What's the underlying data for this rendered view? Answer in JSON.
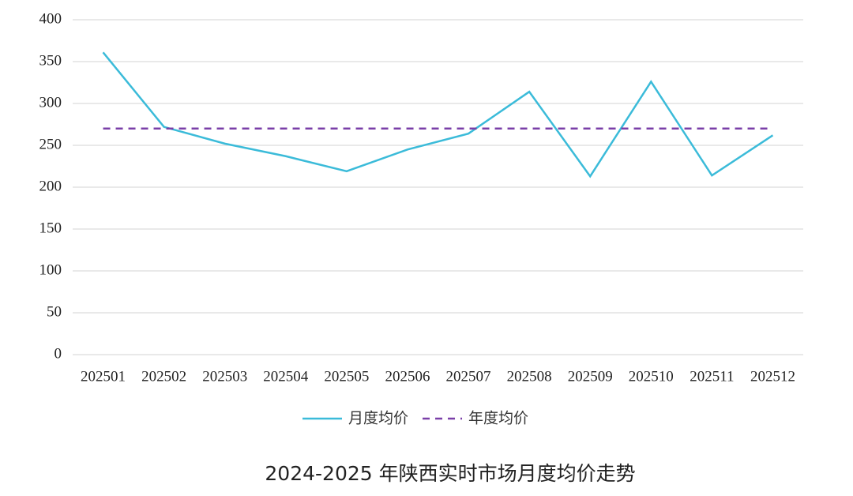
{
  "chart_data": {
    "type": "line",
    "title": "2024-2025 年陕西实时市场月度均价走势",
    "categories": [
      "202501",
      "202502",
      "202503",
      "202504",
      "202505",
      "202506",
      "202507",
      "202508",
      "202509",
      "202510",
      "202511",
      "202512"
    ],
    "series": [
      {
        "name": "月度均价",
        "color": "#3bbbd9",
        "style": "solid",
        "values": [
          361,
          272,
          252,
          237,
          219,
          245,
          264,
          314,
          213,
          326,
          214,
          262
        ]
      },
      {
        "name": "年度均价",
        "color": "#7a3fa8",
        "style": "dashed",
        "values": [
          270,
          270,
          270,
          270,
          270,
          270,
          270,
          270,
          270,
          270,
          270,
          270
        ]
      }
    ],
    "ylim": [
      0,
      400
    ],
    "yticks": [
      0,
      50,
      100,
      150,
      200,
      250,
      300,
      350,
      400
    ],
    "grid": true,
    "legend": "bottom"
  }
}
